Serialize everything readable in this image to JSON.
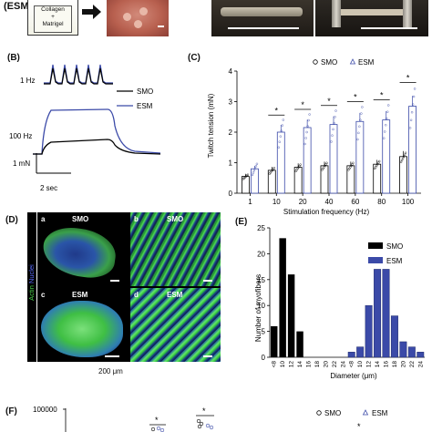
{
  "top": {
    "esm_label": "(ESM)",
    "box_line1": "Collagen",
    "box_line2": "+",
    "box_line3": "Matrigel"
  },
  "panelB": {
    "label": "(B)",
    "hz1": "1 Hz",
    "hz100": "100 Hz",
    "scale_force": "1 mN",
    "scale_time": "2 sec",
    "legend_smo": "SMO",
    "legend_esm": "ESM",
    "colors": {
      "smo": "#000000",
      "esm": "#3b4aa8"
    }
  },
  "panelC": {
    "label": "(C)",
    "legend_smo": "SMO",
    "legend_esm": "ESM",
    "star": "*",
    "chart_data": {
      "type": "bar",
      "xlabel": "Stimulation frequency (Hz)",
      "ylabel": "Twitch tension (mN)",
      "categories": [
        "1",
        "10",
        "20",
        "40",
        "60",
        "80",
        "100"
      ],
      "ylim": [
        0,
        4
      ],
      "yticks": [
        "0",
        "1",
        "2",
        "3",
        "4"
      ],
      "series": [
        {
          "name": "SMO",
          "values": [
            0.55,
            0.75,
            0.85,
            0.9,
            0.9,
            0.95,
            1.2
          ]
        },
        {
          "name": "ESM",
          "values": [
            0.8,
            2.0,
            2.15,
            2.25,
            2.35,
            2.4,
            2.85
          ]
        }
      ],
      "significant": [
        false,
        true,
        true,
        true,
        true,
        true,
        true
      ]
    }
  },
  "panelD": {
    "label": "(D)",
    "side_actin": "Actin",
    "side_nuclei": "Nuclei",
    "tiles": [
      {
        "letter": "a",
        "title": "SMO"
      },
      {
        "letter": "b",
        "title": "SMO"
      },
      {
        "letter": "c",
        "title": "ESM"
      },
      {
        "letter": "d",
        "title": "ESM"
      }
    ],
    "scale_text": "200 μm"
  },
  "panelE": {
    "label": "(E)",
    "legend_smo": "SMO",
    "legend_esm": "ESM",
    "colors": {
      "smo": "#000000",
      "esm": "#3b4aa8"
    },
    "chart_data": {
      "type": "bar",
      "xlabel": "Diameter (μm)",
      "ylabel": "Number of myofibers",
      "categories": [
        "<8",
        "10",
        "12",
        "14",
        "16",
        "18",
        "20",
        "22",
        "24",
        "<8",
        "10",
        "12",
        "14",
        "16",
        "18",
        "20",
        "22",
        "24"
      ],
      "ylim": [
        0,
        25
      ],
      "yticks": [
        "0",
        "5",
        "10",
        "15",
        "20",
        "25"
      ],
      "series": [
        {
          "name": "SMO",
          "values": [
            6,
            23,
            16,
            5,
            0,
            0,
            0,
            0,
            0,
            0,
            0,
            0,
            0,
            0,
            0,
            0,
            0,
            0
          ]
        },
        {
          "name": "ESM",
          "values": [
            0,
            0,
            0,
            0,
            0,
            0,
            0,
            0,
            0,
            1,
            2,
            10,
            17,
            17,
            8,
            3,
            2,
            1
          ]
        }
      ]
    }
  },
  "panelF": {
    "label": "(F)",
    "ytick": "100000",
    "legend_smo": "SMO",
    "legend_esm": "ESM",
    "star": "*"
  }
}
